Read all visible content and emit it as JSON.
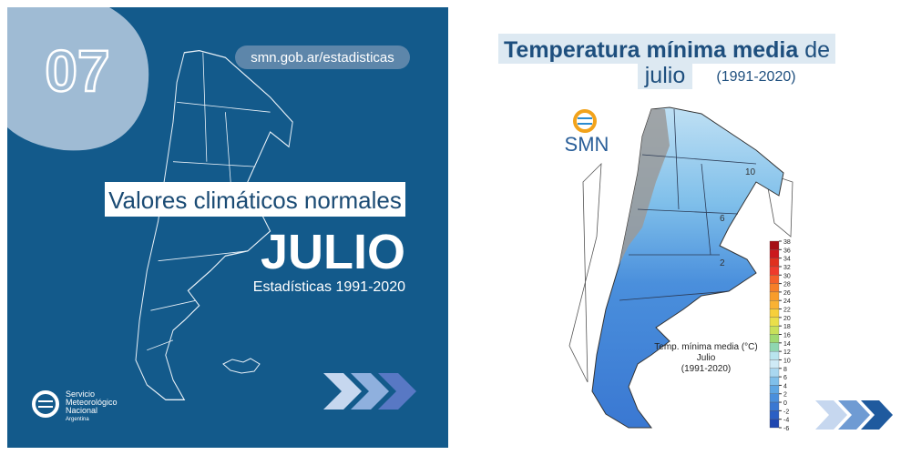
{
  "left": {
    "number": "07",
    "url": "smn.gob.ar/estadisticas",
    "heading": "Valores climáticos normales",
    "month": "JULIO",
    "subtitle": "Estadísticas 1991-2020",
    "logo": [
      "Servicio",
      "Meteorológico",
      "Nacional",
      "Argentina"
    ]
  },
  "right": {
    "title_bold": "Temperatura mínima media",
    "title_rest": "de",
    "title_line2": "julio",
    "period": "(1991-2020)",
    "logo": "SMN",
    "contour_labels": [
      "10",
      "6",
      "2"
    ],
    "map_legend": {
      "title": "Temp. mínima media (°C)",
      "month": "Julio",
      "period": "(1991-2020)",
      "ticks": [
        38,
        36,
        34,
        32,
        30,
        28,
        26,
        24,
        22,
        20,
        18,
        16,
        14,
        12,
        10,
        8,
        6,
        4,
        2,
        0,
        -2,
        -4,
        -6
      ],
      "colors": [
        "#a50f15",
        "#cb181d",
        "#e0301e",
        "#ef3b2c",
        "#f4602a",
        "#f67f28",
        "#f89c2a",
        "#f9b233",
        "#f7cf3b",
        "#eadf4a",
        "#c8e05a",
        "#9fd970",
        "#8fd6b0",
        "#b9e4ee",
        "#cfeaf6",
        "#a9d7f0",
        "#7fbfea",
        "#5ea6e3",
        "#4a8fdc",
        "#3a78d2",
        "#2b5fc4",
        "#1f47b0"
      ]
    }
  }
}
